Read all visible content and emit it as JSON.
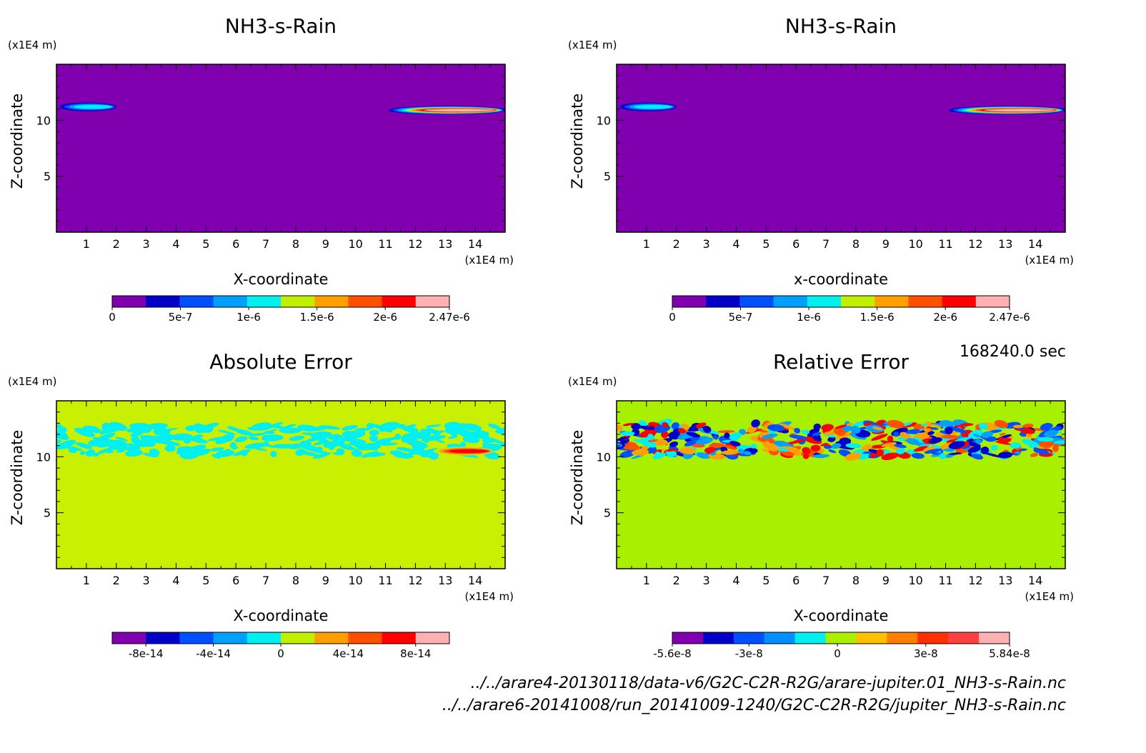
{
  "time_label": "168240.0 sec",
  "file_paths": [
    "../../arare4-20130118/data-v6/G2C-C2R-R2G/arare-jupiter.01_NH3-s-Rain.nc",
    "../../arare6-20141008/run_20141009-1240/G2C-C2R-R2G/jupiter_NH3-s-Rain.nc"
  ],
  "chart_data": [
    {
      "type": "heatmap",
      "title": "NH3-s-Rain",
      "xlabel": "X-coordinate",
      "ylabel": "Z-coordinate",
      "x_unit": "(x1E4 m)",
      "y_unit": "(x1E4 m)",
      "xlim": [
        0,
        15
      ],
      "ylim": [
        0,
        15
      ],
      "x_ticks": [
        "1",
        "2",
        "3",
        "4",
        "5",
        "6",
        "7",
        "8",
        "9",
        "10",
        "11",
        "12",
        "13",
        "14"
      ],
      "y_ticks": [
        "5",
        "10"
      ],
      "background_color": "#8000b0",
      "features": [
        {
          "kind": "streak",
          "x": [
            0.0,
            1.9
          ],
          "z": 11.2,
          "peak": 1.2e-06
        },
        {
          "kind": "streak",
          "x": [
            10.9,
            14.8
          ],
          "z": 10.9,
          "peak": 2.47e-06
        }
      ],
      "colorbar": {
        "colors": [
          "#8000b0",
          "#0000c8",
          "#0050ff",
          "#00a0ff",
          "#00f0f0",
          "#c0f000",
          "#ffa000",
          "#ff5000",
          "#ff0000",
          "#ffb0b0"
        ],
        "ticks": [
          "0",
          "5e-7",
          "1e-6",
          "1.5e-6",
          "2e-6",
          "2.47e-6"
        ],
        "range": [
          0,
          2.47e-06
        ]
      }
    },
    {
      "type": "heatmap",
      "title": "NH3-s-Rain",
      "xlabel": "x-coordinate",
      "ylabel": "Z-coordinate",
      "x_unit": "(x1E4 m)",
      "y_unit": "(x1E4 m)",
      "xlim": [
        0,
        15
      ],
      "ylim": [
        0,
        15
      ],
      "x_ticks": [
        "1",
        "2",
        "3",
        "4",
        "5",
        "6",
        "7",
        "8",
        "9",
        "10",
        "11",
        "12",
        "13",
        "14"
      ],
      "y_ticks": [
        "5",
        "10"
      ],
      "background_color": "#8000b0",
      "features": [
        {
          "kind": "streak",
          "x": [
            0.0,
            1.9
          ],
          "z": 11.2,
          "peak": 1.2e-06
        },
        {
          "kind": "streak",
          "x": [
            10.9,
            14.8
          ],
          "z": 10.9,
          "peak": 2.47e-06
        }
      ],
      "colorbar": {
        "colors": [
          "#8000b0",
          "#0000c8",
          "#0050ff",
          "#00a0ff",
          "#00f0f0",
          "#c0f000",
          "#ffa000",
          "#ff5000",
          "#ff0000",
          "#ffb0b0"
        ],
        "ticks": [
          "0",
          "5e-7",
          "1e-6",
          "1.5e-6",
          "2e-6",
          "2.47e-6"
        ],
        "range": [
          0,
          2.47e-06
        ]
      }
    },
    {
      "type": "heatmap",
      "title": "Absolute Error",
      "xlabel": "X-coordinate",
      "ylabel": "Z-coordinate",
      "x_unit": "(x1E4 m)",
      "y_unit": "(x1E4 m)",
      "xlim": [
        0,
        15
      ],
      "ylim": [
        0,
        15
      ],
      "x_ticks": [
        "1",
        "2",
        "3",
        "4",
        "5",
        "6",
        "7",
        "8",
        "9",
        "10",
        "11",
        "12",
        "13",
        "14"
      ],
      "y_ticks": [
        "5",
        "10"
      ],
      "background_color": "#c8f000",
      "features": [
        {
          "kind": "noise_band",
          "z": [
            10.0,
            12.8
          ],
          "palette": [
            "#00f0f0"
          ]
        },
        {
          "kind": "streak",
          "x": [
            12.5,
            14.5
          ],
          "z": 10.5,
          "peak": 8e-14
        }
      ],
      "colorbar": {
        "colors": [
          "#8000b0",
          "#0000c8",
          "#0050ff",
          "#00a0ff",
          "#00f0f0",
          "#c0f000",
          "#ffa000",
          "#ff5000",
          "#ff0000",
          "#ffb0b0"
        ],
        "ticks": [
          "-8e-14",
          "-4e-14",
          "0",
          "4e-14",
          "8e-14"
        ],
        "range": [
          -1e-13,
          1e-13
        ]
      }
    },
    {
      "type": "heatmap",
      "title": "Relative Error",
      "xlabel": "X-coordinate",
      "ylabel": "Z-coordinate",
      "x_unit": "(x1E4 m)",
      "y_unit": "(x1E4 m)",
      "xlim": [
        0,
        15
      ],
      "ylim": [
        0,
        15
      ],
      "x_ticks": [
        "1",
        "2",
        "3",
        "4",
        "5",
        "6",
        "7",
        "8",
        "9",
        "10",
        "11",
        "12",
        "13",
        "14"
      ],
      "y_ticks": [
        "5",
        "10"
      ],
      "background_color": "#a8f000",
      "features": [
        {
          "kind": "noise_band",
          "z": [
            10.0,
            13.0
          ],
          "palette": [
            "#0000c8",
            "#0050ff",
            "#00a0ff",
            "#00f0f0",
            "#ffa000",
            "#ff5000",
            "#ff0000"
          ]
        }
      ],
      "colorbar": {
        "colors": [
          "#8000b0",
          "#0000c8",
          "#0050ff",
          "#0090ff",
          "#00f0f0",
          "#a8f000",
          "#ffc000",
          "#ff8000",
          "#ff3000",
          "#ff4040",
          "#ffb0b0"
        ],
        "ticks": [
          "-5.6e-8",
          "-3e-8",
          "0",
          "3e-8",
          "5.84e-8"
        ],
        "range": [
          -5.6e-08,
          5.84e-08
        ]
      }
    }
  ]
}
